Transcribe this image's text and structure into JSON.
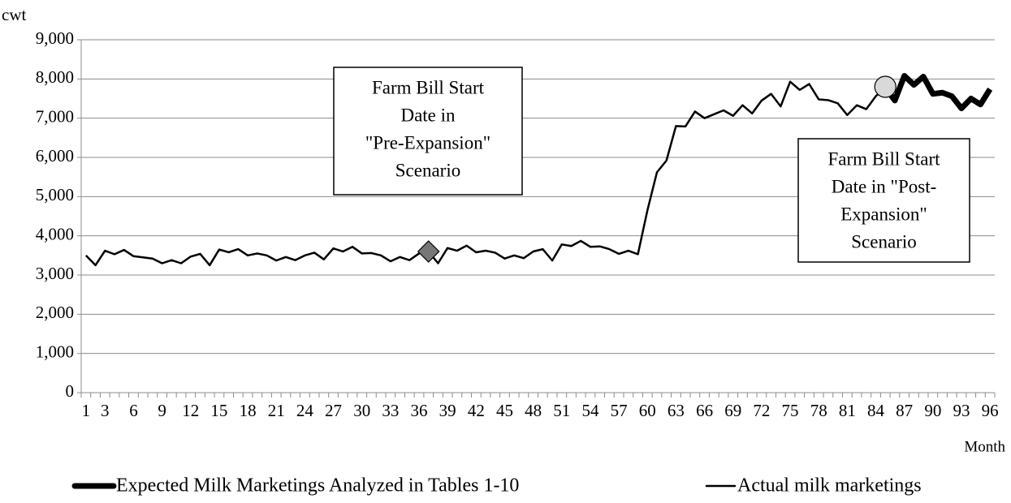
{
  "chart_data": {
    "type": "line",
    "y_label": "cwt",
    "x_label": "Month",
    "categories": [
      "1",
      null,
      "3",
      null,
      null,
      "6",
      null,
      null,
      "9",
      null,
      null,
      "12",
      null,
      null,
      "15",
      null,
      null,
      "18",
      null,
      null,
      "21",
      null,
      null,
      "24",
      null,
      null,
      "27",
      null,
      null,
      "30",
      null,
      null,
      "33",
      null,
      null,
      "36",
      null,
      null,
      "39",
      null,
      null,
      "42",
      null,
      null,
      "45",
      null,
      null,
      "48",
      null,
      null,
      "51",
      null,
      null,
      "54",
      null,
      null,
      "57",
      null,
      null,
      "60",
      null,
      null,
      "63",
      null,
      null,
      "66",
      null,
      null,
      "69",
      null,
      null,
      "72",
      null,
      null,
      "75",
      null,
      null,
      "78",
      null,
      null,
      "81",
      null,
      null,
      "84",
      null,
      null,
      "87",
      null,
      null,
      "90",
      null,
      null,
      "93",
      null,
      null,
      "96"
    ],
    "series": [
      {
        "name": "Expected Milk Marketings Analyzed in Tables 1-10",
        "color": "#000000",
        "width": 7,
        "values": [
          null,
          null,
          null,
          null,
          null,
          null,
          null,
          null,
          null,
          null,
          null,
          null,
          null,
          null,
          null,
          null,
          null,
          null,
          null,
          null,
          null,
          null,
          null,
          null,
          null,
          null,
          null,
          null,
          null,
          null,
          null,
          null,
          null,
          null,
          null,
          null,
          null,
          null,
          null,
          null,
          null,
          null,
          null,
          null,
          null,
          null,
          null,
          null,
          null,
          null,
          null,
          null,
          null,
          null,
          null,
          null,
          null,
          null,
          null,
          null,
          null,
          null,
          null,
          null,
          null,
          null,
          null,
          null,
          null,
          null,
          null,
          null,
          null,
          null,
          null,
          null,
          null,
          null,
          null,
          null,
          null,
          null,
          null,
          null,
          7780,
          7450,
          8080,
          7850,
          8060,
          7620,
          7650,
          7560,
          7250,
          7500,
          7350,
          7740
        ]
      },
      {
        "name": "Actual milk marketings",
        "color": "#000000",
        "width": 2.5,
        "values": [
          3500,
          3250,
          3620,
          3530,
          3640,
          3480,
          3450,
          3420,
          3300,
          3380,
          3300,
          3470,
          3540,
          3250,
          3650,
          3580,
          3660,
          3500,
          3550,
          3500,
          3370,
          3460,
          3380,
          3500,
          3570,
          3400,
          3680,
          3600,
          3720,
          3550,
          3560,
          3500,
          3350,
          3460,
          3380,
          3550,
          3600,
          3300,
          3690,
          3620,
          3750,
          3580,
          3620,
          3570,
          3420,
          3500,
          3430,
          3600,
          3660,
          3370,
          3780,
          3740,
          3870,
          3720,
          3730,
          3660,
          3540,
          3620,
          3530,
          4650,
          5620,
          5920,
          6800,
          6790,
          7170,
          7000,
          7100,
          7200,
          7060,
          7330,
          7120,
          7450,
          7620,
          7300,
          7930,
          7720,
          7870,
          7480,
          7460,
          7380,
          7080,
          7330,
          7230,
          7560,
          7780,
          7450,
          8080,
          7850,
          8060,
          7620,
          7650,
          7560,
          7250,
          7500,
          7350,
          7740
        ]
      }
    ],
    "markers": [
      {
        "category": 37,
        "value": 3600,
        "shape": "diamond",
        "color": "#777777"
      },
      {
        "category": 85,
        "value": 7800,
        "shape": "circle",
        "color": "#d9d9d9"
      }
    ],
    "annotations": [
      {
        "lines": [
          "Farm Bill Start",
          "Date in",
          "\"Pre-Expansion\"",
          "Scenario"
        ]
      },
      {
        "lines": [
          "Farm Bill Start",
          "Date in \"Post-",
          "Expansion\"",
          "Scenario"
        ]
      }
    ],
    "ylim": [
      0,
      9000
    ],
    "yticks": [
      0,
      {
        "value": 1000,
        "label": "1,000"
      },
      {
        "value": 2000,
        "label": "2,000"
      },
      {
        "value": 3000,
        "label": "3,000"
      },
      {
        "value": 4000,
        "label": "4,000"
      },
      {
        "value": 5000,
        "label": "5,000"
      },
      {
        "value": 6000,
        "label": "6,000"
      },
      {
        "value": 7000,
        "label": "7,000"
      },
      {
        "value": 8000,
        "label": "8,000"
      },
      {
        "value": 9000,
        "label": "9,000"
      }
    ],
    "grid": true,
    "legend": "bottom"
  }
}
